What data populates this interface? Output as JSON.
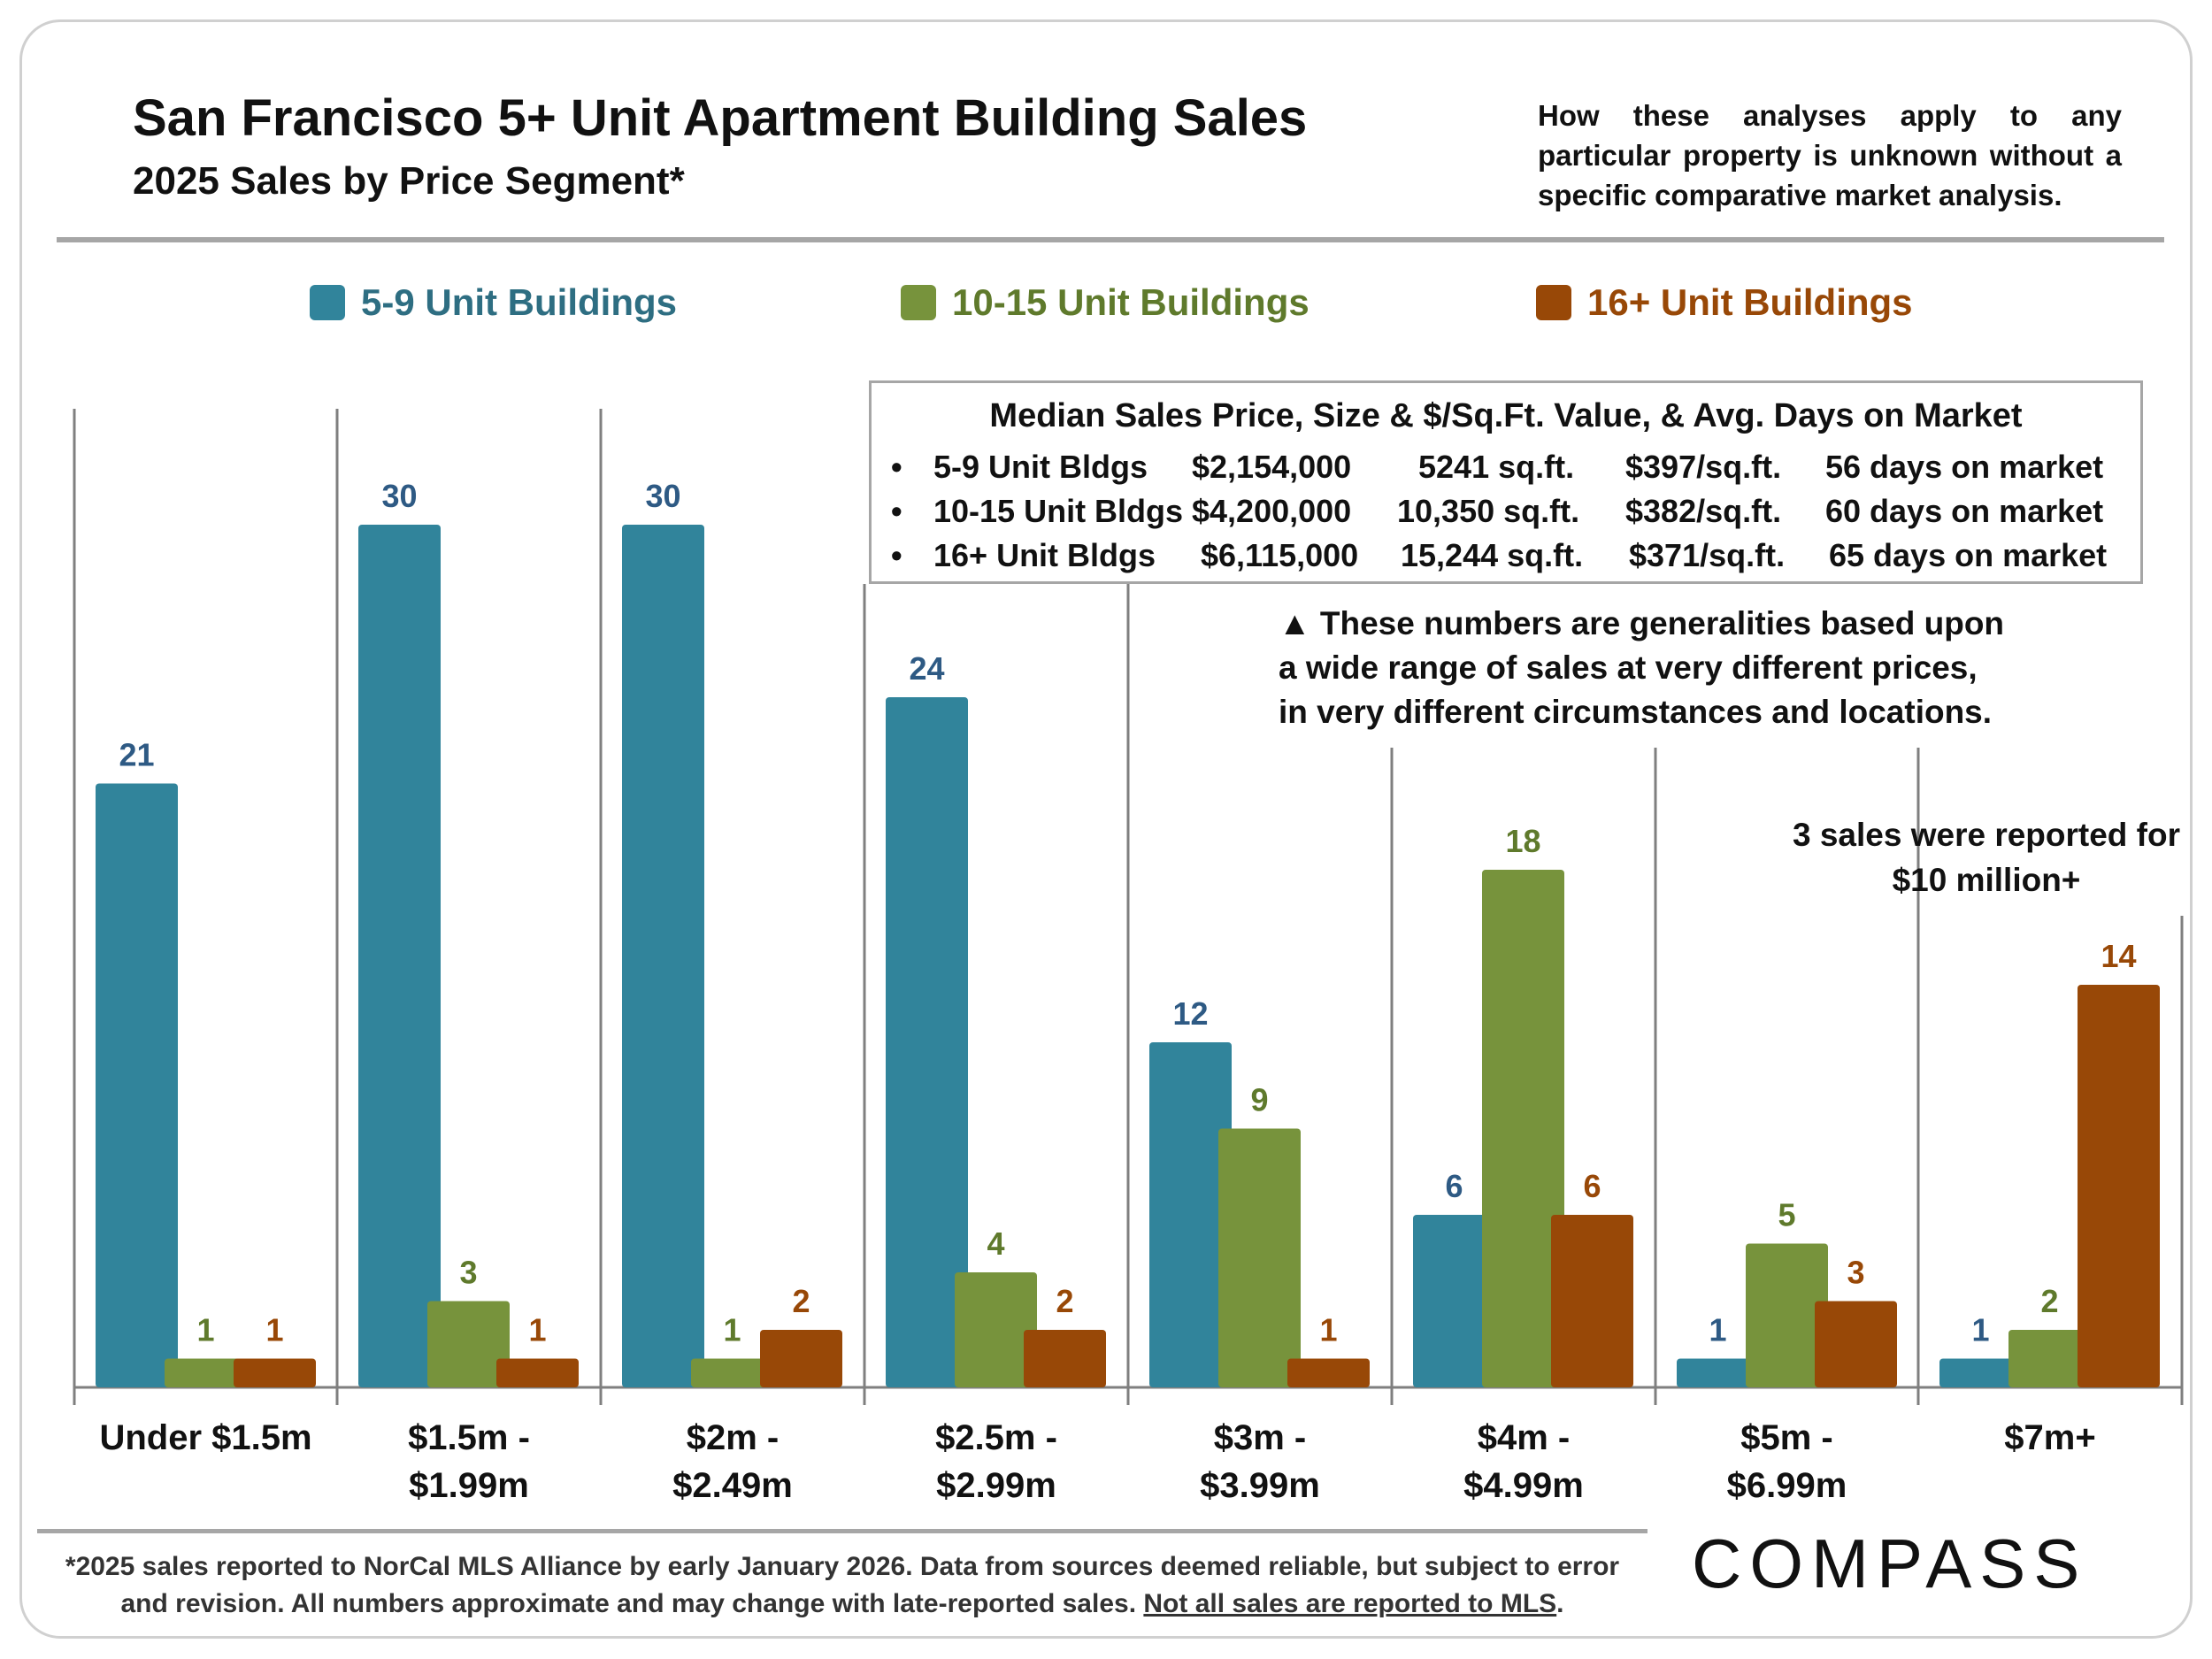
{
  "header": {
    "title": "San Francisco 5+ Unit Apartment Building Sales",
    "subtitle": "2025 Sales by Price Segment*",
    "disclaimer": "How these analyses apply to any particular property is unknown without a specific comparative market analysis."
  },
  "legend": [
    {
      "label": "5-9 Unit Buildings",
      "color": "#31849b"
    },
    {
      "label": "10-15 Unit Buildings",
      "color": "#77933c"
    },
    {
      "label": "16+ Unit Buildings",
      "color": "#984807"
    }
  ],
  "info_box": {
    "title": "Median Sales Price, Size & $/Sq.Ft. Value, & Avg. Days on Market",
    "rows": [
      {
        "bullet": "•",
        "name": "5-9 Unit Bldgs",
        "price": "$2,154,000",
        "size": "5241 sq.ft.",
        "ppsf": "$397/sq.ft.",
        "dom": "56 days on market"
      },
      {
        "bullet": "•",
        "name": "10-15 Unit Bldgs",
        "price": "$4,200,000",
        "size": "10,350 sq.ft.",
        "ppsf": "$382/sq.ft.",
        "dom": "60 days on market"
      },
      {
        "bullet": "•",
        "name": "16+ Unit Bldgs",
        "price": "$6,115,000",
        "size": "15,244 sq.ft.",
        "ppsf": "$371/sq.ft.",
        "dom": "65 days on market"
      }
    ]
  },
  "notes": {
    "generalities_line1": "▲ These numbers are generalities based upon",
    "generalities_line2": "a wide range of sales at very different prices,",
    "generalities_line3": "in very different circumstances and locations.",
    "ten_million": "3 sales were reported for $10 million+"
  },
  "chart_data": {
    "type": "bar",
    "title": "San Francisco 5+ Unit Apartment Building Sales",
    "subtitle": "2025 Sales by Price Segment*",
    "xlabel": "",
    "ylabel": "",
    "ylim": [
      0,
      34
    ],
    "grid": false,
    "legend_position": "top",
    "categories": [
      "Under $1.5m",
      "$1.5m - $1.99m",
      "$2m - $2.49m",
      "$2.5m - $2.99m",
      "$3m - $3.99m",
      "$4m - $4.99m",
      "$5m - $6.99m",
      "$7m+"
    ],
    "category_lines": [
      [
        "Under $1.5m"
      ],
      [
        "$1.5m -",
        "$1.99m"
      ],
      [
        "$2m -",
        "$2.49m"
      ],
      [
        "$2.5m -",
        "$2.99m"
      ],
      [
        "$3m -",
        "$3.99m"
      ],
      [
        "$4m -",
        "$4.99m"
      ],
      [
        "$5m -",
        "$6.99m"
      ],
      [
        "$7m+"
      ]
    ],
    "series": [
      {
        "name": "5-9 Unit Buildings",
        "color": "#31849b",
        "label_color": "#2e5a84",
        "values": [
          21,
          30,
          30,
          24,
          12,
          6,
          1,
          1
        ]
      },
      {
        "name": "10-15 Unit Buildings",
        "color": "#77933c",
        "label_color": "#5f7a2c",
        "values": [
          1,
          3,
          1,
          4,
          9,
          18,
          5,
          2
        ]
      },
      {
        "name": "16+ Unit Buildings",
        "color": "#984807",
        "label_color": "#984807",
        "values": [
          1,
          1,
          2,
          2,
          1,
          6,
          3,
          14
        ]
      }
    ]
  },
  "footer": {
    "line1": "*2025 sales reported to NorCal MLS Alliance by early January 2026. Data from sources deemed reliable, but subject to error",
    "line2": "and revision. All numbers approximate and may change with late-reported sales.",
    "link_text": "Not all sales are reported to MLS",
    "line2_end": ".",
    "logo": "COMPASS"
  }
}
